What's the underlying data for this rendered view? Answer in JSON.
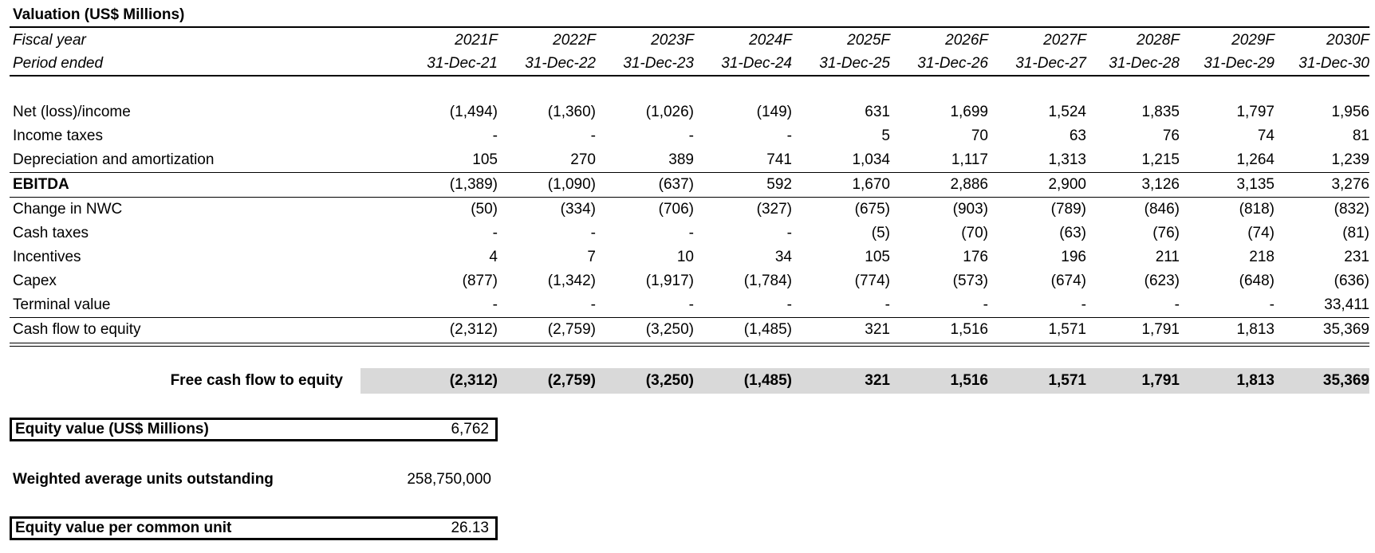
{
  "title": "Valuation (US$ Millions)",
  "header": {
    "fiscal_year_label": "Fiscal year",
    "period_label": "Period ended",
    "years": [
      "2021F",
      "2022F",
      "2023F",
      "2024F",
      "2025F",
      "2026F",
      "2027F",
      "2028F",
      "2029F",
      "2030F"
    ],
    "periods": [
      "31-Dec-21",
      "31-Dec-22",
      "31-Dec-23",
      "31-Dec-24",
      "31-Dec-25",
      "31-Dec-26",
      "31-Dec-27",
      "31-Dec-28",
      "31-Dec-29",
      "31-Dec-30"
    ]
  },
  "rows": [
    {
      "label": "Net (loss)/income",
      "values": [
        "(1,494)",
        "(1,360)",
        "(1,026)",
        "(149)",
        "631",
        "1,699",
        "1,524",
        "1,835",
        "1,797",
        "1,956"
      ]
    },
    {
      "label": "Income taxes",
      "values": [
        "-",
        "-",
        "-",
        "-",
        "5",
        "70",
        "63",
        "76",
        "74",
        "81"
      ]
    },
    {
      "label": "Depreciation and amortization",
      "values": [
        "105",
        "270",
        "389",
        "741",
        "1,034",
        "1,117",
        "1,313",
        "1,215",
        "1,264",
        "1,239"
      ]
    },
    {
      "label": "EBITDA",
      "values": [
        "(1,389)",
        "(1,090)",
        "(637)",
        "592",
        "1,670",
        "2,886",
        "2,900",
        "3,126",
        "3,135",
        "3,276"
      ]
    },
    {
      "label": "Change in NWC",
      "values": [
        "(50)",
        "(334)",
        "(706)",
        "(327)",
        "(675)",
        "(903)",
        "(789)",
        "(846)",
        "(818)",
        "(832)"
      ]
    },
    {
      "label": "Cash taxes",
      "values": [
        "-",
        "-",
        "-",
        "-",
        "(5)",
        "(70)",
        "(63)",
        "(76)",
        "(74)",
        "(81)"
      ]
    },
    {
      "label": "Incentives",
      "values": [
        "4",
        "7",
        "10",
        "34",
        "105",
        "176",
        "196",
        "211",
        "218",
        "231"
      ]
    },
    {
      "label": "Capex",
      "values": [
        "(877)",
        "(1,342)",
        "(1,917)",
        "(1,784)",
        "(774)",
        "(573)",
        "(674)",
        "(623)",
        "(648)",
        "(636)"
      ]
    },
    {
      "label": "Terminal value",
      "values": [
        "-",
        "-",
        "-",
        "-",
        "-",
        "-",
        "-",
        "-",
        "-",
        "33,411"
      ]
    },
    {
      "label": "Cash flow to equity",
      "values": [
        "(2,312)",
        "(2,759)",
        "(3,250)",
        "(1,485)",
        "321",
        "1,516",
        "1,571",
        "1,791",
        "1,813",
        "35,369"
      ]
    }
  ],
  "fcf": {
    "label": "Free cash flow to equity",
    "values": [
      "(2,312)",
      "(2,759)",
      "(3,250)",
      "(1,485)",
      "321",
      "1,516",
      "1,571",
      "1,791",
      "1,813",
      "35,369"
    ]
  },
  "summary": {
    "equity_value_label": "Equity value (US$ Millions)",
    "equity_value": "6,762",
    "units_label": "Weighted average units outstanding",
    "units_value": "258,750,000",
    "per_unit_label": "Equity value per common unit",
    "per_unit_value": "26.13"
  }
}
